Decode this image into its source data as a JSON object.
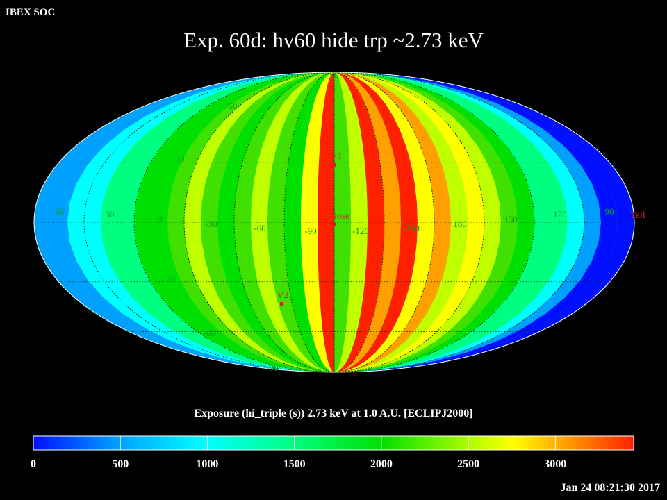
{
  "header": {
    "soc_label": "IBEX SOC"
  },
  "title": "Exp.   60d: hv60 hide trp ~2.73 keV",
  "map": {
    "projection": "mollweide",
    "grid_labels": {
      "latitudes": [
        {
          "text": "90",
          "lat": 90,
          "lon_side": "center"
        },
        {
          "text": "60",
          "lat": 60
        },
        {
          "text": "30",
          "lat": 30
        },
        {
          "text": "-30",
          "lat": -30
        },
        {
          "text": "-60",
          "lat": -60
        },
        {
          "text": "-90",
          "lat": -90
        }
      ],
      "longitudes": [
        "60",
        "30",
        "0",
        "-30",
        "-60",
        "-90",
        "-120",
        "-150",
        "180",
        "150",
        "120",
        "90"
      ]
    },
    "markers": [
      {
        "name": "V1",
        "color": "#c82828"
      },
      {
        "name": "Nose",
        "color": "#c82828"
      },
      {
        "name": "V2",
        "color": "#c82828"
      },
      {
        "name": "Tail",
        "color": "#c82828"
      }
    ]
  },
  "colorbar": {
    "title": "Exposure (hi_triple (s))  2.73 keV at 1.0 A.U. [ECLIPJ2000]",
    "ticks": [
      "0",
      "500",
      "1000",
      "1500",
      "2000",
      "2500",
      "3000"
    ],
    "tick_values": [
      0,
      500,
      1000,
      1500,
      2000,
      2500,
      3000
    ],
    "range": [
      0,
      3450
    ],
    "colors": [
      "#0010ff",
      "#00a0ff",
      "#00ffff",
      "#00ff80",
      "#00e000",
      "#40e000",
      "#c0ff00",
      "#ffff00",
      "#ffa000",
      "#ff2000"
    ]
  },
  "timestamp": "Jan 24 08:21:30 2017"
}
